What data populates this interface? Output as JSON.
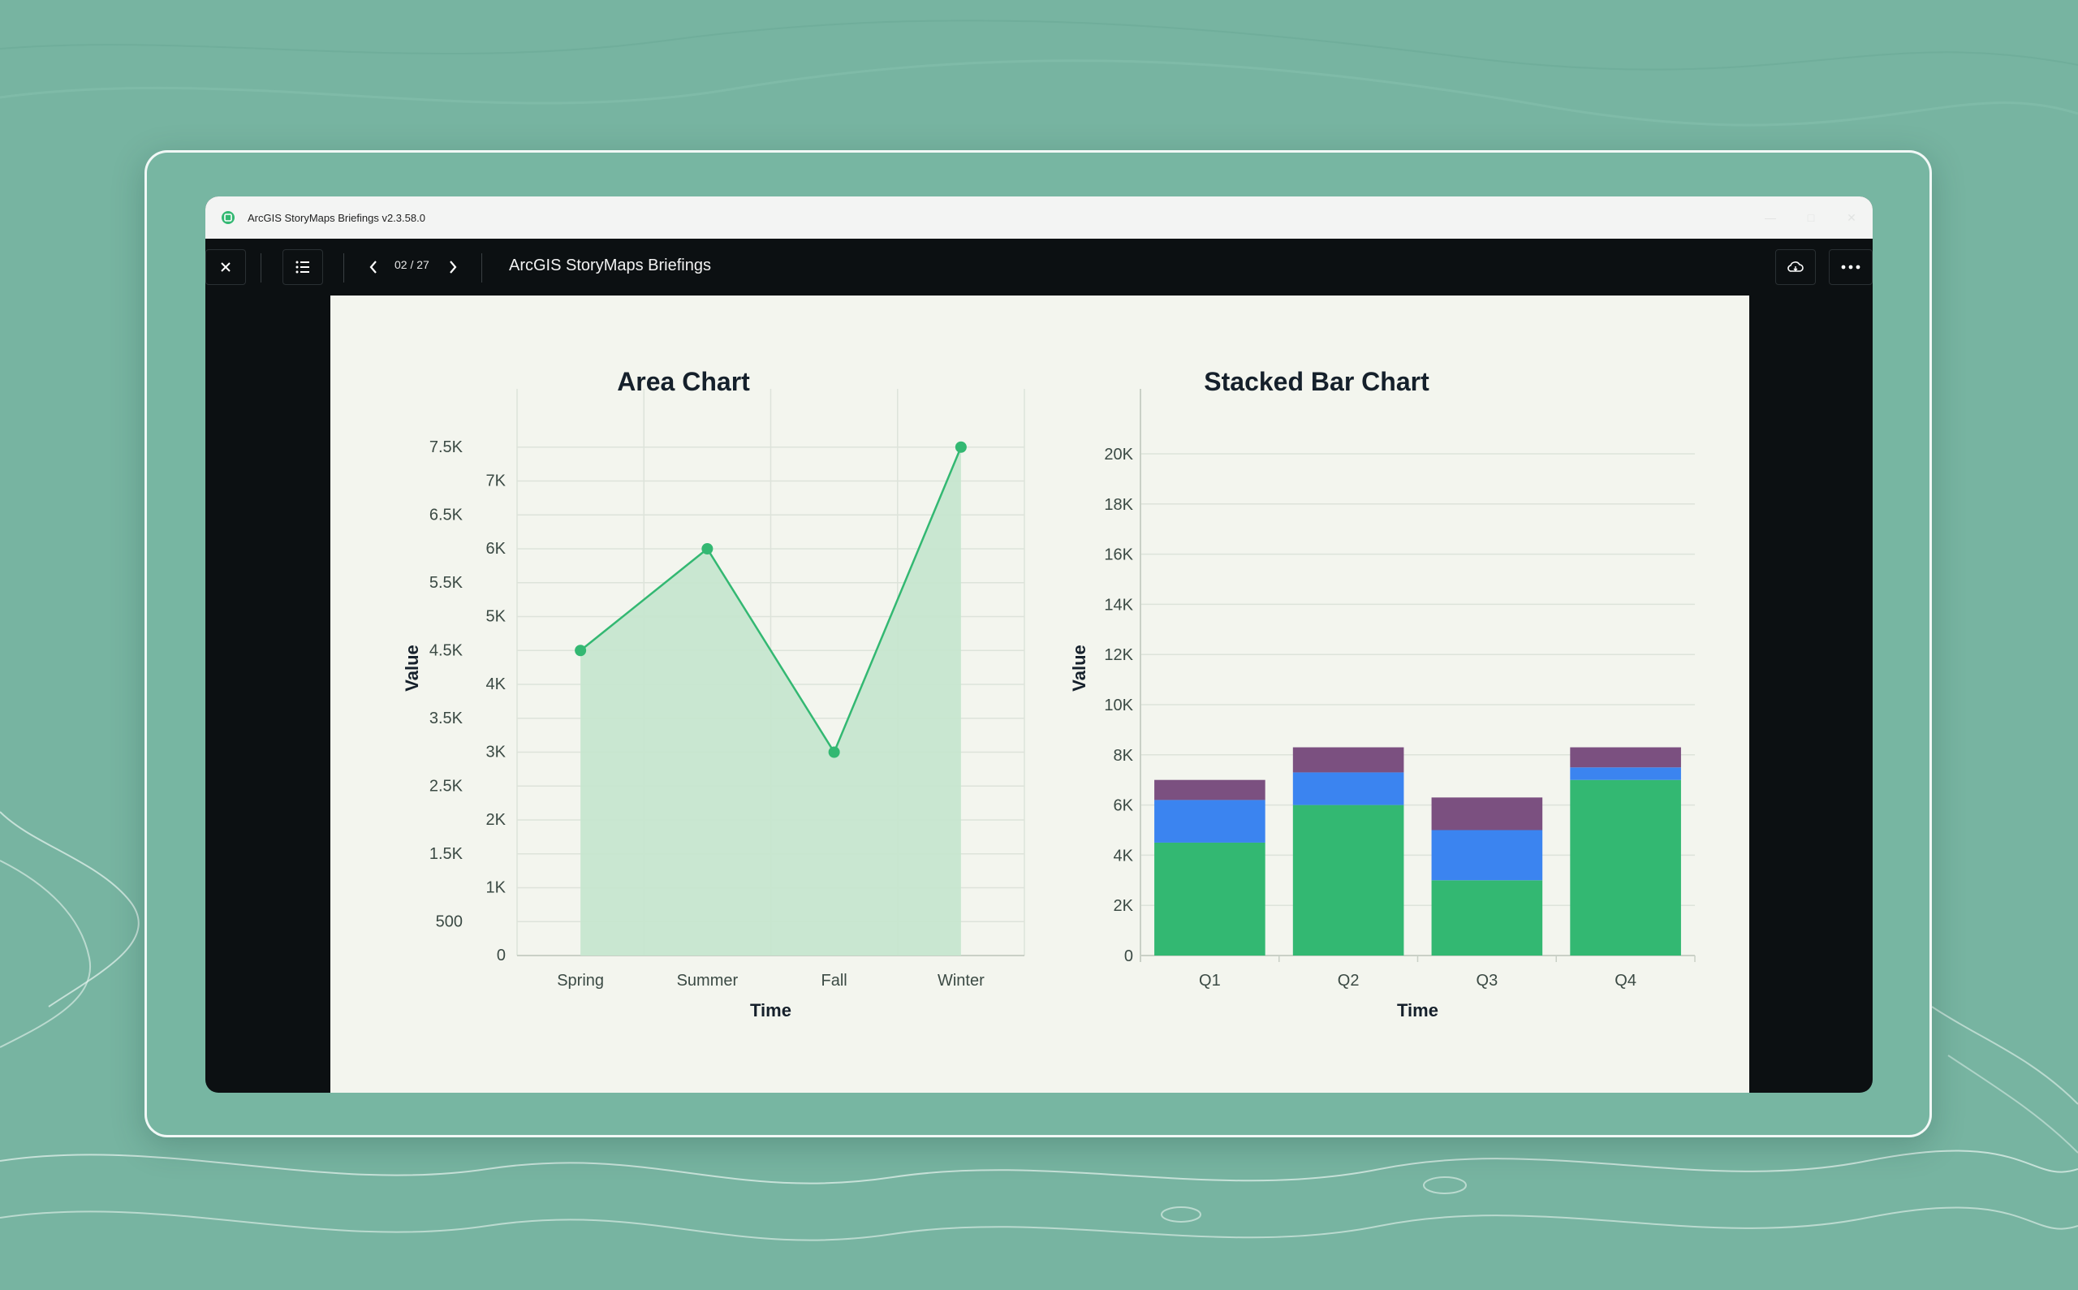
{
  "window": {
    "app_title": "ArcGIS StoryMaps Briefings v2.3.58.0"
  },
  "toolbar": {
    "page_indicator": "02 / 27",
    "doc_title": "ArcGIS StoryMaps Briefings"
  },
  "icons": {
    "close": "close-icon",
    "toc": "list-icon",
    "prev": "chevron-left-icon",
    "next": "chevron-right-icon",
    "cloud": "cloud-sync-icon",
    "more": "more-horizontal-icon"
  },
  "colors": {
    "accent_green": "#33b872",
    "area_fill": "#c6e6cf",
    "blue": "#3b84f0",
    "purple": "#7b5080"
  },
  "chart_data": [
    {
      "type": "area",
      "title": "Area Chart",
      "xlabel": "Time",
      "ylabel": "Value",
      "categories": [
        "Spring",
        "Summer",
        "Fall",
        "Winter"
      ],
      "values": [
        4500,
        6000,
        3000,
        7500
      ],
      "ylim": [
        0,
        8000
      ],
      "y_ticks": [
        "0",
        "500",
        "1K",
        "1.5K",
        "2K",
        "2.5K",
        "3K",
        "3.5K",
        "4K",
        "4.5K",
        "5K",
        "5.5K",
        "6K",
        "6.5K",
        "7K",
        "7.5K"
      ],
      "grid": true
    },
    {
      "type": "bar",
      "stacked": true,
      "title": "Stacked Bar Chart",
      "xlabel": "Time",
      "ylabel": "Value",
      "categories": [
        "Q1",
        "Q2",
        "Q3",
        "Q4"
      ],
      "series": [
        {
          "values": [
            4500,
            6000,
            3000,
            7000
          ],
          "color": "#33b872"
        },
        {
          "values": [
            1700,
            1300,
            2000,
            500
          ],
          "color": "#3b84f0"
        },
        {
          "values": [
            800,
            1000,
            1300,
            800
          ],
          "color": "#7b5080"
        }
      ],
      "ylim": [
        0,
        20000
      ],
      "y_ticks": [
        "0",
        "2K",
        "4K",
        "6K",
        "8K",
        "10K",
        "12K",
        "14K",
        "16K",
        "18K",
        "20K"
      ],
      "grid": true
    }
  ]
}
